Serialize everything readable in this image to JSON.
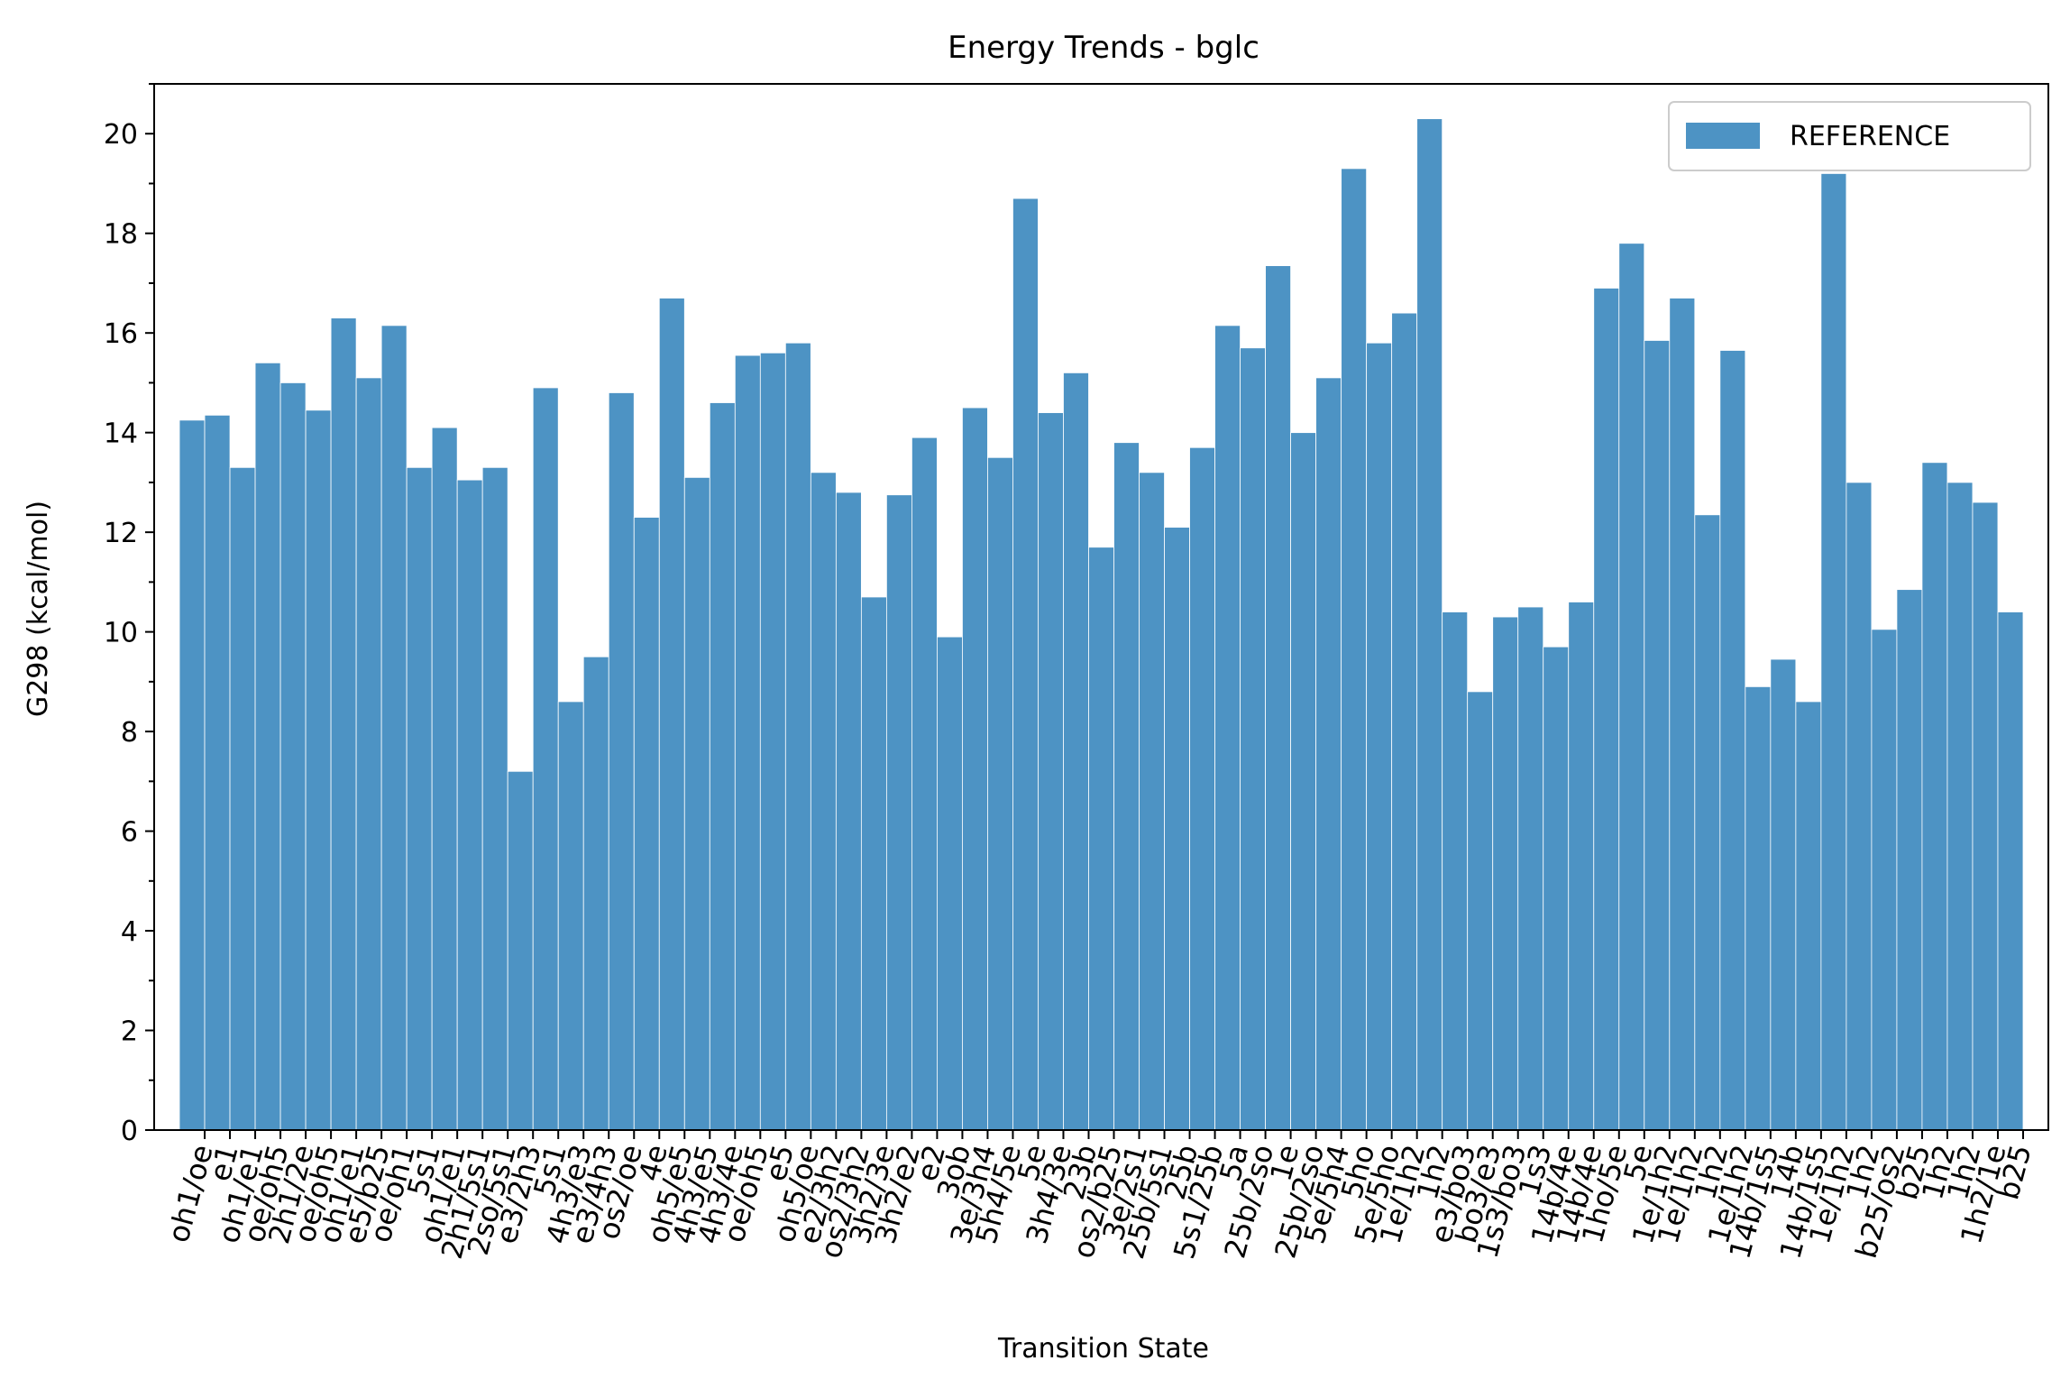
{
  "chart_data": {
    "type": "bar",
    "title": "Energy Trends - bglc",
    "xlabel": "Transition State",
    "ylabel": "G298 (kcal/mol)",
    "ylim": [
      0,
      21
    ],
    "yticks": [
      0,
      2,
      4,
      6,
      8,
      10,
      12,
      14,
      16,
      18,
      20
    ],
    "grid": false,
    "legend_position": "top-right",
    "x_tick_rotation_deg": 75,
    "colors": {
      "bar": "#4d93c4",
      "axes": "#000000"
    },
    "categories": [
      "oh1/oe",
      "e1",
      "oh1/e1",
      "oe/oh5",
      "2h1/2e",
      "oe/oh5",
      "oh1/e1",
      "e5/b25",
      "oe/oh1",
      "5s1",
      "oh1/e1",
      "2h1/5s1",
      "2so/5s1",
      "e3/2h3",
      "5s1",
      "4h3/e3",
      "e3/4h3",
      "os2/oe",
      "4e",
      "oh5/e5",
      "4h3/e5",
      "4h3/4e",
      "oe/oh5",
      "e5",
      "oh5/oe",
      "e2/3h2",
      "os2/3h2",
      "3h2/3e",
      "3h2/e2",
      "e2",
      "3ob",
      "3e/3h4",
      "5h4/5e",
      "5e",
      "3h4/3e",
      "23b",
      "os2/b25",
      "3e/2s1",
      "25b/5s1",
      "25b",
      "5s1/25b",
      "5a",
      "25b/2so",
      "1e",
      "25b/2so",
      "5e/5h4",
      "5ho",
      "5e/5ho",
      "1e/1h2",
      "1h2",
      "e3/bo3",
      "bo3/e3",
      "1s3/bo3",
      "1s3",
      "14b/4e",
      "14b/4e",
      "1ho/5e",
      "5e",
      "1e/1h2",
      "1e/1h2",
      "1h2",
      "1e/1h2",
      "14b/1s5",
      "14b",
      "14b/1s5",
      "1e/1h2",
      "1h2",
      "b25/os2",
      "b25",
      "1h2",
      "1h2",
      "1h2/1e",
      "b25"
    ],
    "series": [
      {
        "name": "REFERENCE",
        "values": [
          14.25,
          14.35,
          13.3,
          15.4,
          15.0,
          14.45,
          16.3,
          15.1,
          16.15,
          13.3,
          14.1,
          13.05,
          13.3,
          7.2,
          14.9,
          8.6,
          9.5,
          14.8,
          12.3,
          16.7,
          13.1,
          14.6,
          15.55,
          15.6,
          15.8,
          13.2,
          12.8,
          10.7,
          12.75,
          13.9,
          9.9,
          14.5,
          13.5,
          18.7,
          14.4,
          15.2,
          11.7,
          13.8,
          13.2,
          12.1,
          13.7,
          16.15,
          15.7,
          17.35,
          14.0,
          15.1,
          19.3,
          15.8,
          16.4,
          20.3,
          10.4,
          8.8,
          10.3,
          10.5,
          9.7,
          10.6,
          16.9,
          17.8,
          15.85,
          16.7,
          12.35,
          15.65,
          8.9,
          9.45,
          8.6,
          19.2,
          13.0,
          10.05,
          10.85,
          13.4,
          13.0,
          12.6,
          10.4
        ]
      }
    ]
  }
}
